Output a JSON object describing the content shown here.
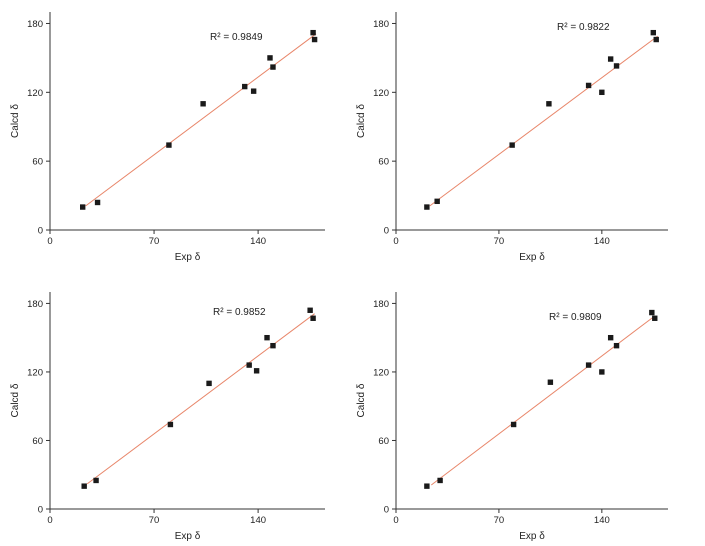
{
  "chart_data": [
    {
      "type": "scatter",
      "xlabel": "Exp δ",
      "ylabel": "Calcd δ",
      "xlim": [
        0,
        185
      ],
      "ylim": [
        0,
        190
      ],
      "xticks": [
        "0",
        "70",
        "140"
      ],
      "yticks": [
        "0",
        "60",
        "120",
        "180"
      ],
      "annotation": "R² = 0.9849",
      "trend_color": "#e8866a",
      "trend": {
        "x": [
          24,
          179
        ],
        "y": [
          21,
          171
        ]
      },
      "series": [
        {
          "x": [
            22,
            32,
            103,
            80,
            131,
            137,
            148,
            150,
            177,
            178
          ],
          "y": [
            20,
            24,
            110,
            74,
            125,
            121,
            150,
            142,
            172,
            166
          ]
        }
      ]
    },
    {
      "type": "scatter",
      "xlabel": "Exp δ",
      "ylabel": "Calcd δ",
      "xlim": [
        0,
        185
      ],
      "ylim": [
        0,
        190
      ],
      "xticks": [
        "0",
        "70",
        "140"
      ],
      "yticks": [
        "0",
        "60",
        "120",
        "180"
      ],
      "annotation": "R² = 0.9822",
      "trend_color": "#e8866a",
      "trend": {
        "x": [
          23,
          178
        ],
        "y": [
          21,
          169
        ]
      },
      "series": [
        {
          "x": [
            21,
            28,
            104,
            79,
            131,
            140,
            146,
            150,
            175,
            177
          ],
          "y": [
            20,
            25,
            110,
            74,
            126,
            120,
            149,
            143,
            172,
            166
          ]
        }
      ]
    },
    {
      "type": "scatter",
      "xlabel": "Exp δ",
      "ylabel": "Calcd δ",
      "xlim": [
        0,
        185
      ],
      "ylim": [
        0,
        190
      ],
      "xticks": [
        "0",
        "70",
        "140"
      ],
      "yticks": [
        "0",
        "60",
        "120",
        "180"
      ],
      "annotation": "R² = 0.9852",
      "trend_color": "#e8866a",
      "trend": {
        "x": [
          25,
          178
        ],
        "y": [
          22,
          171
        ]
      },
      "series": [
        {
          "x": [
            23,
            31,
            107,
            81,
            134,
            139,
            146,
            150,
            175,
            177
          ],
          "y": [
            20,
            25,
            110,
            74,
            126,
            121,
            150,
            143,
            174,
            167
          ]
        }
      ]
    },
    {
      "type": "scatter",
      "xlabel": "Exp δ",
      "ylabel": "Calcd δ",
      "xlim": [
        0,
        185
      ],
      "ylim": [
        0,
        190
      ],
      "xticks": [
        "0",
        "70",
        "140"
      ],
      "yticks": [
        "0",
        "60",
        "120",
        "180"
      ],
      "annotation": "R² = 0.9809",
      "trend_color": "#e8866a",
      "trend": {
        "x": [
          24,
          176
        ],
        "y": [
          21,
          169
        ]
      },
      "series": [
        {
          "x": [
            21,
            30,
            105,
            80,
            131,
            140,
            146,
            150,
            174,
            176
          ],
          "y": [
            20,
            25,
            111,
            74,
            126,
            120,
            150,
            143,
            172,
            167
          ]
        }
      ]
    }
  ]
}
